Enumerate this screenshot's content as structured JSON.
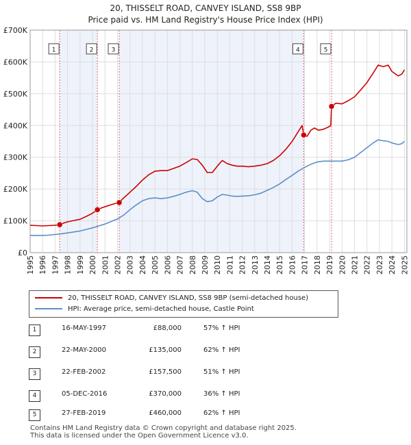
{
  "chart_data": {
    "type": "line",
    "title": "20, THISSELT ROAD, CANVEY ISLAND, SS8 9BP",
    "subtitle": "Price paid vs. HM Land Registry's House Price Index (HPI)",
    "xlim": [
      1995,
      2025.2
    ],
    "ylim": [
      0,
      700000
    ],
    "x_ticks": [
      "1995",
      "1996",
      "1997",
      "1998",
      "1999",
      "2000",
      "2001",
      "2002",
      "2003",
      "2004",
      "2005",
      "2006",
      "2007",
      "2008",
      "2009",
      "2010",
      "2011",
      "2012",
      "2013",
      "2014",
      "2015",
      "2016",
      "2017",
      "2018",
      "2019",
      "2020",
      "2021",
      "2022",
      "2023",
      "2024",
      "2025"
    ],
    "y_ticks": [
      {
        "value": 0,
        "label": "£0"
      },
      {
        "value": 100000,
        "label": "£100K"
      },
      {
        "value": 200000,
        "label": "£200K"
      },
      {
        "value": 300000,
        "label": "£300K"
      },
      {
        "value": 400000,
        "label": "£400K"
      },
      {
        "value": 500000,
        "label": "£500K"
      },
      {
        "value": 600000,
        "label": "£600K"
      },
      {
        "value": 700000,
        "label": "£700K"
      }
    ],
    "series": [
      {
        "name": "20, THISSELT ROAD, CANVEY ISLAND, SS8 9BP (semi-detached house)",
        "color": "#cc0000",
        "points": [
          [
            1995.0,
            86000
          ],
          [
            1995.5,
            85000
          ],
          [
            1996.0,
            84000
          ],
          [
            1996.5,
            85000
          ],
          [
            1997.0,
            86000
          ],
          [
            1997.37,
            88000
          ],
          [
            1997.7,
            93000
          ],
          [
            1998.0,
            97000
          ],
          [
            1998.5,
            101000
          ],
          [
            1999.0,
            105000
          ],
          [
            1999.5,
            114000
          ],
          [
            2000.0,
            124000
          ],
          [
            2000.39,
            135000
          ],
          [
            2000.8,
            142000
          ],
          [
            2001.2,
            147000
          ],
          [
            2001.6,
            152000
          ],
          [
            2002.14,
            157500
          ],
          [
            2002.5,
            172000
          ],
          [
            2003.0,
            190000
          ],
          [
            2003.5,
            208000
          ],
          [
            2004.0,
            228000
          ],
          [
            2004.5,
            245000
          ],
          [
            2005.0,
            256000
          ],
          [
            2005.5,
            258000
          ],
          [
            2006.0,
            258000
          ],
          [
            2006.5,
            265000
          ],
          [
            2007.0,
            272000
          ],
          [
            2007.5,
            283000
          ],
          [
            2008.0,
            295000
          ],
          [
            2008.4,
            293000
          ],
          [
            2008.8,
            275000
          ],
          [
            2009.2,
            252000
          ],
          [
            2009.6,
            252000
          ],
          [
            2010.0,
            272000
          ],
          [
            2010.4,
            290000
          ],
          [
            2010.8,
            280000
          ],
          [
            2011.2,
            275000
          ],
          [
            2011.6,
            272000
          ],
          [
            2012.0,
            272000
          ],
          [
            2012.5,
            270000
          ],
          [
            2013.0,
            272000
          ],
          [
            2013.5,
            275000
          ],
          [
            2014.0,
            280000
          ],
          [
            2014.5,
            290000
          ],
          [
            2015.0,
            305000
          ],
          [
            2015.5,
            325000
          ],
          [
            2016.0,
            350000
          ],
          [
            2016.4,
            375000
          ],
          [
            2016.8,
            400000
          ],
          [
            2016.93,
            370000
          ],
          [
            2017.2,
            366000
          ],
          [
            2017.5,
            385000
          ],
          [
            2017.8,
            392000
          ],
          [
            2018.1,
            385000
          ],
          [
            2018.5,
            388000
          ],
          [
            2018.9,
            395000
          ],
          [
            2019.1,
            400000
          ],
          [
            2019.16,
            460000
          ],
          [
            2019.5,
            470000
          ],
          [
            2020.0,
            468000
          ],
          [
            2020.5,
            478000
          ],
          [
            2021.0,
            490000
          ],
          [
            2021.5,
            512000
          ],
          [
            2022.0,
            535000
          ],
          [
            2022.5,
            565000
          ],
          [
            2022.9,
            590000
          ],
          [
            2023.3,
            585000
          ],
          [
            2023.7,
            590000
          ],
          [
            2024.0,
            570000
          ],
          [
            2024.5,
            556000
          ],
          [
            2024.8,
            562000
          ],
          [
            2025.0,
            575000
          ]
        ]
      },
      {
        "name": "HPI: Average price, semi-detached house, Castle Point",
        "color": "#5b8ec8",
        "points": [
          [
            1995.0,
            54000
          ],
          [
            1995.5,
            54000
          ],
          [
            1996.0,
            54000
          ],
          [
            1996.5,
            55000
          ],
          [
            1997.0,
            57000
          ],
          [
            1997.5,
            59000
          ],
          [
            1998.0,
            62000
          ],
          [
            1998.5,
            65000
          ],
          [
            1999.0,
            68000
          ],
          [
            1999.5,
            73000
          ],
          [
            2000.0,
            78000
          ],
          [
            2000.5,
            84000
          ],
          [
            2001.0,
            90000
          ],
          [
            2001.5,
            98000
          ],
          [
            2002.0,
            106000
          ],
          [
            2002.5,
            118000
          ],
          [
            2003.0,
            135000
          ],
          [
            2003.5,
            150000
          ],
          [
            2004.0,
            163000
          ],
          [
            2004.5,
            170000
          ],
          [
            2005.0,
            172000
          ],
          [
            2005.5,
            170000
          ],
          [
            2006.0,
            172000
          ],
          [
            2006.5,
            177000
          ],
          [
            2007.0,
            183000
          ],
          [
            2007.5,
            190000
          ],
          [
            2008.0,
            195000
          ],
          [
            2008.4,
            190000
          ],
          [
            2008.8,
            170000
          ],
          [
            2009.2,
            160000
          ],
          [
            2009.6,
            163000
          ],
          [
            2010.0,
            175000
          ],
          [
            2010.4,
            183000
          ],
          [
            2010.8,
            181000
          ],
          [
            2011.2,
            178000
          ],
          [
            2011.6,
            177000
          ],
          [
            2012.0,
            178000
          ],
          [
            2012.5,
            179000
          ],
          [
            2013.0,
            182000
          ],
          [
            2013.5,
            187000
          ],
          [
            2014.0,
            196000
          ],
          [
            2014.5,
            205000
          ],
          [
            2015.0,
            216000
          ],
          [
            2015.5,
            230000
          ],
          [
            2016.0,
            243000
          ],
          [
            2016.5,
            257000
          ],
          [
            2017.0,
            268000
          ],
          [
            2017.5,
            278000
          ],
          [
            2018.0,
            285000
          ],
          [
            2018.5,
            288000
          ],
          [
            2019.0,
            288000
          ],
          [
            2019.5,
            288000
          ],
          [
            2020.0,
            288000
          ],
          [
            2020.5,
            292000
          ],
          [
            2021.0,
            300000
          ],
          [
            2021.5,
            315000
          ],
          [
            2022.0,
            330000
          ],
          [
            2022.5,
            345000
          ],
          [
            2022.9,
            355000
          ],
          [
            2023.3,
            352000
          ],
          [
            2023.7,
            350000
          ],
          [
            2024.0,
            345000
          ],
          [
            2024.5,
            340000
          ],
          [
            2024.8,
            343000
          ],
          [
            2025.0,
            350000
          ]
        ]
      }
    ],
    "sales": [
      {
        "id": "1",
        "x": 1997.37,
        "price": 88000,
        "date": "16-MAY-1997",
        "price_label": "£88,000",
        "hpi": "57% ↑ HPI"
      },
      {
        "id": "2",
        "x": 2000.39,
        "price": 135000,
        "date": "22-MAY-2000",
        "price_label": "£135,000",
        "hpi": "62% ↑ HPI"
      },
      {
        "id": "3",
        "x": 2002.14,
        "price": 157500,
        "date": "22-FEB-2002",
        "price_label": "£157,500",
        "hpi": "51% ↑ HPI"
      },
      {
        "id": "4",
        "x": 2016.93,
        "price": 370000,
        "date": "05-DEC-2016",
        "price_label": "£370,000",
        "hpi": "36% ↑ HPI"
      },
      {
        "id": "5",
        "x": 2019.16,
        "price": 460000,
        "date": "27-FEB-2019",
        "price_label": "£460,000",
        "hpi": "62% ↑ HPI"
      }
    ],
    "marker_label_value": 640000,
    "sale_color": "#cc0000",
    "vline_color": "#e06060",
    "shade_color": "#eef2fb",
    "grid": true
  },
  "legend": {
    "property": "20, THISSELT ROAD, CANVEY ISLAND, SS8 9BP (semi-detached house)",
    "hpi": "HPI: Average price, semi-detached house, Castle Point"
  },
  "footer": {
    "line1": "Contains HM Land Registry data © Crown copyright and database right 2025.",
    "line2": "This data is licensed under the Open Government Licence v3.0."
  }
}
